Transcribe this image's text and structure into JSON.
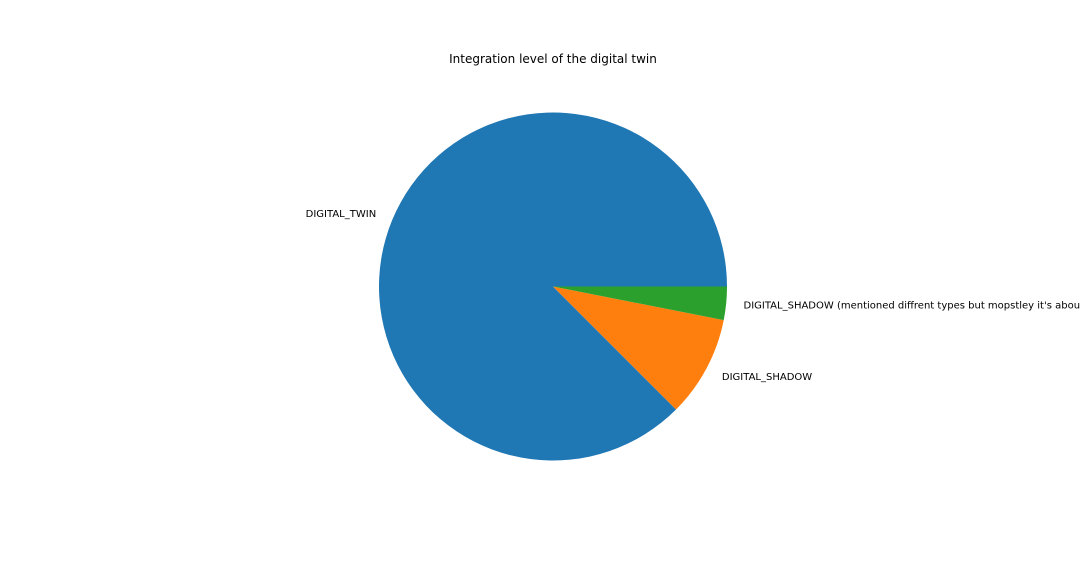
{
  "chart_data": {
    "type": "pie",
    "title": "Integration level of the digital twin",
    "start_angle_deg": 0,
    "direction": "counterclockwise",
    "labels": [
      "DIGITAL_TWIN",
      "DIGITAL_SHADOW",
      "DIGITAL_SHADOW (mentioned diffrent types but mopstley it's abou"
    ],
    "values": [
      87.5,
      9.4,
      3.1
    ],
    "colors": [
      "#1f77b4",
      "#ff7f0e",
      "#2ca02c"
    ],
    "legend": "none"
  }
}
